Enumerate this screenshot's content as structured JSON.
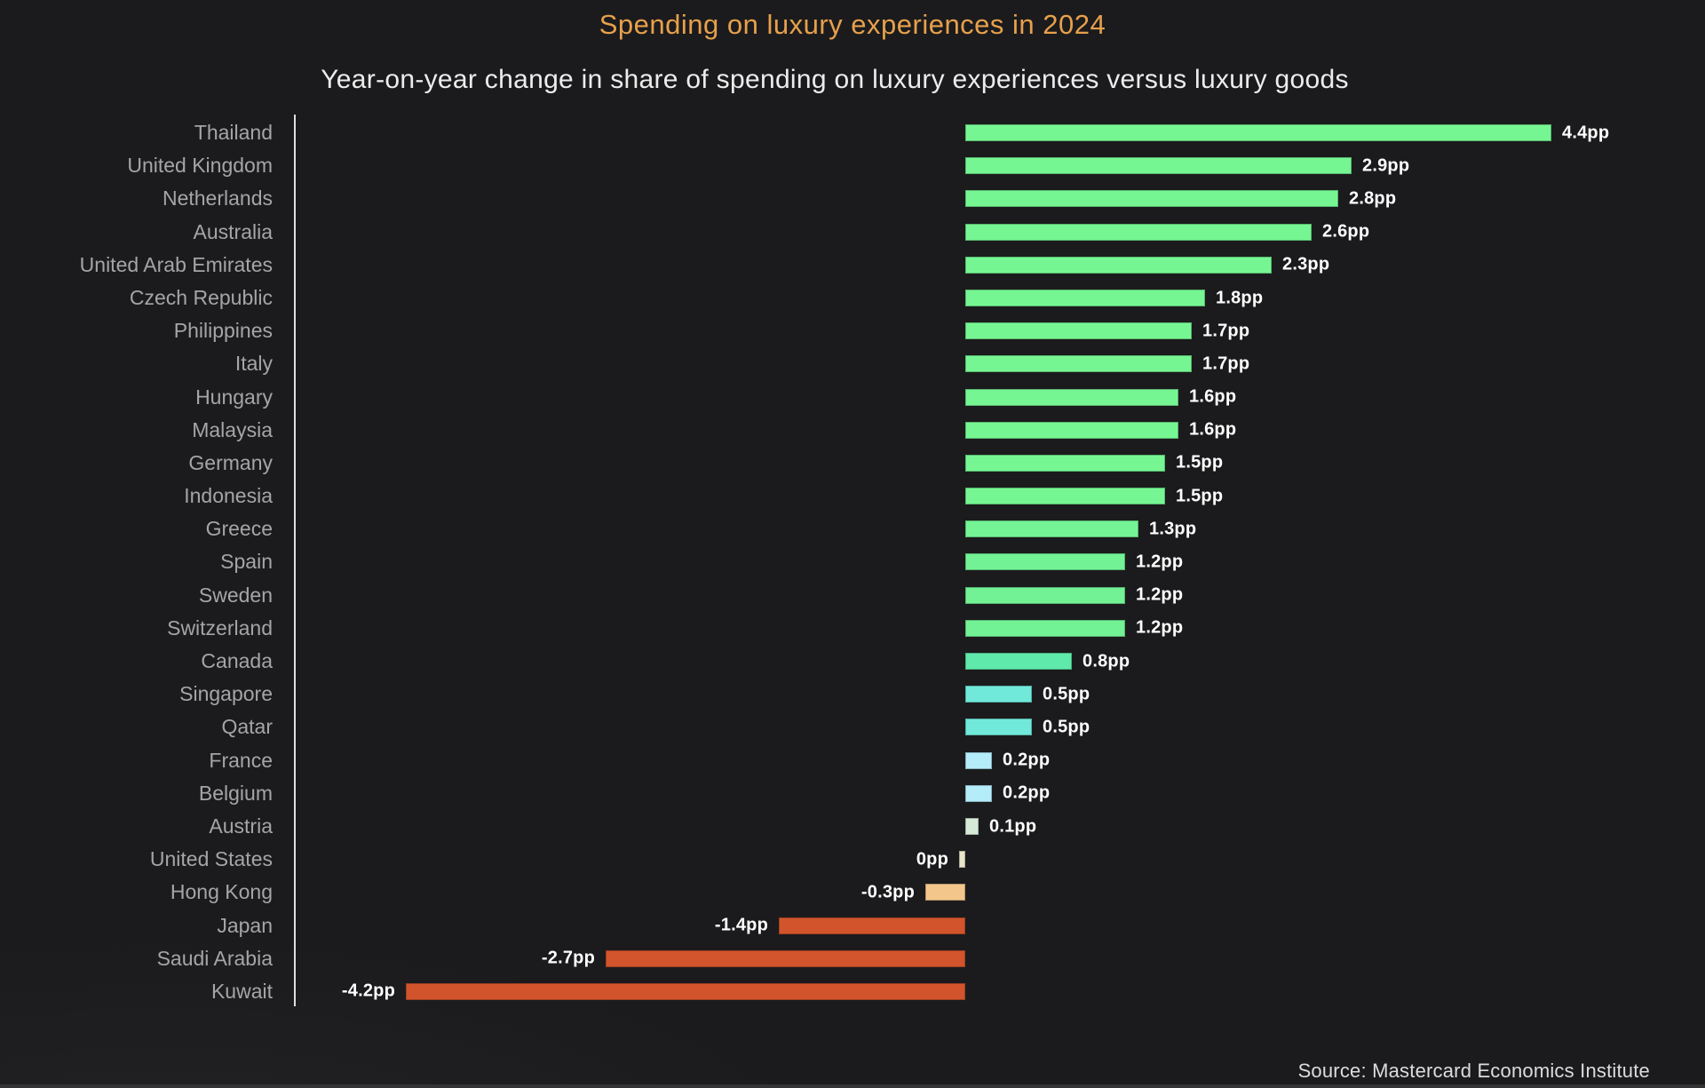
{
  "title": "Spending on luxury experiences in 2024",
  "subtitle": "Year-on-year change in share of spending on luxury experiences versus luxury goods",
  "source": "Source: Mastercard Economics Institute",
  "colors": {
    "background": "#1b1b1d",
    "title": "#e7a04c",
    "subtitle": "#ececec",
    "country_label": "#a5a5a7",
    "value_label": "#ffffff",
    "axis_line": "#dedede",
    "positive_green": "#76f693",
    "teal": "#5feaab",
    "cyan": "#70e9da",
    "light_blue": "#b4ecf9",
    "pale_green": "#d6ead8",
    "cream": "#e9e5c9",
    "peach": "#f3c78c",
    "negative_orange": "#d2542c"
  },
  "chart_data": {
    "type": "bar",
    "orientation": "horizontal",
    "title": "Spending on luxury experiences in 2024",
    "subtitle": "Year-on-year change in share of spending on luxury experiences versus luxury goods",
    "unit": "percentage points (pp)",
    "xlim": [
      -4.9,
      5.0
    ],
    "grid": false,
    "zero_baseline": true,
    "categories": [
      "Thailand",
      "United Kingdom",
      "Netherlands",
      "Australia",
      "United Arab Emirates",
      "Czech Republic",
      "Philippines",
      "Italy",
      "Hungary",
      "Malaysia",
      "Germany",
      "Indonesia",
      "Greece",
      "Spain",
      "Sweden",
      "Switzerland",
      "Canada",
      "Singapore",
      "Qatar",
      "France",
      "Belgium",
      "Austria",
      "United States",
      "Hong Kong",
      "Japan",
      "Saudi Arabia",
      "Kuwait"
    ],
    "values": [
      4.4,
      2.9,
      2.8,
      2.6,
      2.3,
      1.8,
      1.7,
      1.7,
      1.6,
      1.6,
      1.5,
      1.5,
      1.3,
      1.2,
      1.2,
      1.2,
      0.8,
      0.5,
      0.5,
      0.2,
      0.2,
      0.1,
      0.0,
      -0.3,
      -1.4,
      -2.7,
      -4.2
    ],
    "labels": [
      "4.4pp",
      "2.9pp",
      "2.8pp",
      "2.6pp",
      "2.3pp",
      "1.8pp",
      "1.7pp",
      "1.7pp",
      "1.6pp",
      "1.6pp",
      "1.5pp",
      "1.5pp",
      "1.3pp",
      "1.2pp",
      "1.2pp",
      "1.2pp",
      "0.8pp",
      "0.5pp",
      "0.5pp",
      "0.2pp",
      "0.2pp",
      "0.1pp",
      "0pp",
      "-0.3pp",
      "-1.4pp",
      "-2.7pp",
      "-4.2pp"
    ],
    "bar_colors": [
      "#76f693",
      "#76f693",
      "#76f693",
      "#76f693",
      "#76f693",
      "#76f693",
      "#76f693",
      "#76f693",
      "#76f693",
      "#76f693",
      "#76f693",
      "#76f693",
      "#74f495",
      "#72f295",
      "#72f295",
      "#72f295",
      "#5feaab",
      "#70e9da",
      "#70e9da",
      "#b4ecf9",
      "#b4ecf9",
      "#d6ead8",
      "#e9e5c9",
      "#f3c78c",
      "#d2542c",
      "#d2542c",
      "#d2542c"
    ]
  }
}
